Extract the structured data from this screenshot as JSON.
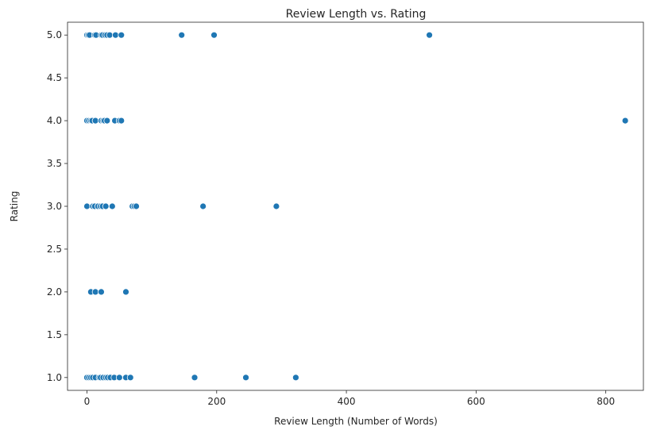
{
  "chart_data": {
    "type": "scatter",
    "title": "Review Length vs. Rating",
    "xlabel": "Review Length (Number of Words)",
    "ylabel": "Rating",
    "xlim": [
      -30,
      858
    ],
    "ylim": [
      0.85,
      5.15
    ],
    "x_ticks": [
      0,
      200,
      400,
      600,
      800
    ],
    "y_ticks": [
      1.0,
      1.5,
      2.0,
      2.5,
      3.0,
      3.5,
      4.0,
      4.5,
      5.0
    ],
    "grid": false,
    "marker_color": "#1f77b4",
    "marker_edge_color": "#ffffff",
    "points": [
      {
        "x": 0,
        "y": 5
      },
      {
        "x": 2,
        "y": 5
      },
      {
        "x": 4,
        "y": 5
      },
      {
        "x": 12,
        "y": 5
      },
      {
        "x": 14,
        "y": 5
      },
      {
        "x": 22,
        "y": 5
      },
      {
        "x": 24,
        "y": 5
      },
      {
        "x": 28,
        "y": 5
      },
      {
        "x": 31,
        "y": 5
      },
      {
        "x": 35,
        "y": 5
      },
      {
        "x": 44,
        "y": 5
      },
      {
        "x": 53,
        "y": 5
      },
      {
        "x": 146,
        "y": 5
      },
      {
        "x": 196,
        "y": 5
      },
      {
        "x": 528,
        "y": 5
      },
      {
        "x": 0,
        "y": 4
      },
      {
        "x": 3,
        "y": 4
      },
      {
        "x": 6,
        "y": 4
      },
      {
        "x": 8,
        "y": 4
      },
      {
        "x": 13,
        "y": 4
      },
      {
        "x": 22,
        "y": 4
      },
      {
        "x": 25,
        "y": 4
      },
      {
        "x": 27,
        "y": 4
      },
      {
        "x": 31,
        "y": 4
      },
      {
        "x": 43,
        "y": 4
      },
      {
        "x": 50,
        "y": 4
      },
      {
        "x": 53,
        "y": 4
      },
      {
        "x": 830,
        "y": 4
      },
      {
        "x": 0,
        "y": 3
      },
      {
        "x": 9,
        "y": 3
      },
      {
        "x": 12,
        "y": 3
      },
      {
        "x": 17,
        "y": 3
      },
      {
        "x": 21,
        "y": 3
      },
      {
        "x": 24,
        "y": 3
      },
      {
        "x": 29,
        "y": 3
      },
      {
        "x": 39,
        "y": 3
      },
      {
        "x": 70,
        "y": 3
      },
      {
        "x": 73,
        "y": 3
      },
      {
        "x": 76,
        "y": 3
      },
      {
        "x": 179,
        "y": 3
      },
      {
        "x": 292,
        "y": 3
      },
      {
        "x": 6,
        "y": 2
      },
      {
        "x": 13,
        "y": 2
      },
      {
        "x": 22,
        "y": 2
      },
      {
        "x": 60,
        "y": 2
      },
      {
        "x": 0,
        "y": 1
      },
      {
        "x": 3,
        "y": 1
      },
      {
        "x": 6,
        "y": 1
      },
      {
        "x": 9,
        "y": 1
      },
      {
        "x": 13,
        "y": 1
      },
      {
        "x": 19,
        "y": 1
      },
      {
        "x": 21,
        "y": 1
      },
      {
        "x": 25,
        "y": 1
      },
      {
        "x": 29,
        "y": 1
      },
      {
        "x": 32,
        "y": 1
      },
      {
        "x": 36,
        "y": 1
      },
      {
        "x": 42,
        "y": 1
      },
      {
        "x": 50,
        "y": 1
      },
      {
        "x": 60,
        "y": 1
      },
      {
        "x": 67,
        "y": 1
      },
      {
        "x": 166,
        "y": 1
      },
      {
        "x": 245,
        "y": 1
      },
      {
        "x": 322,
        "y": 1
      }
    ]
  }
}
